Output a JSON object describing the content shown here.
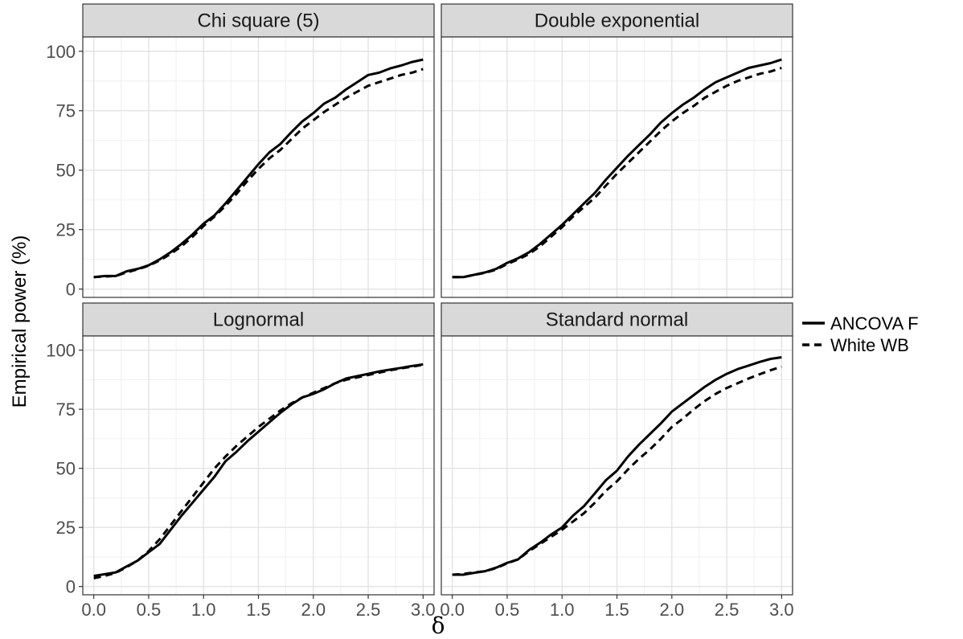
{
  "chart_data": {
    "type": "line",
    "ylabel": "Empirical power (%)",
    "xlabel": "δ",
    "xlim": [
      0.0,
      3.0
    ],
    "ylim": [
      0,
      100
    ],
    "x_ticks": [
      "0.0",
      "0.5",
      "1.0",
      "1.5",
      "2.0",
      "2.5",
      "3.0"
    ],
    "y_ticks": [
      "0",
      "25",
      "50",
      "75",
      "100"
    ],
    "grid": true,
    "legend_position": "right",
    "legend": [
      {
        "label": "ANCOVA F",
        "style": "solid"
      },
      {
        "label": "White WB",
        "style": "dashed"
      }
    ],
    "x": [
      0.0,
      0.1,
      0.2,
      0.3,
      0.4,
      0.5,
      0.6,
      0.7,
      0.8,
      0.9,
      1.0,
      1.1,
      1.2,
      1.3,
      1.4,
      1.5,
      1.6,
      1.7,
      1.8,
      1.9,
      2.0,
      2.1,
      2.2,
      2.3,
      2.4,
      2.5,
      2.6,
      2.7,
      2.8,
      2.9,
      3.0
    ],
    "panels": [
      {
        "title": "Chi square (5)",
        "series": [
          {
            "name": "ANCOVA F",
            "style": "solid",
            "values": [
              5,
              5.5,
              5.5,
              7.5,
              8.5,
              10,
              12.5,
              15.5,
              19,
              23,
              27.5,
              31,
              36,
              41.5,
              47,
              52.5,
              57.5,
              61,
              66,
              70.5,
              74,
              78,
              80.5,
              84,
              87,
              90,
              91,
              92.8,
              94,
              95.5,
              96.5
            ]
          },
          {
            "name": "White WB",
            "style": "dashed",
            "values": [
              5,
              5.3,
              5.5,
              7,
              8.3,
              9.8,
              12,
              14.8,
              18,
              22,
              26.5,
              30.5,
              35,
              40,
              45.5,
              50.5,
              55,
              58.5,
              63,
              67.5,
              71,
              74.5,
              77.5,
              80.5,
              83,
              85.5,
              87,
              88.5,
              90,
              91,
              92.5
            ]
          }
        ]
      },
      {
        "title": "Double exponential",
        "series": [
          {
            "name": "ANCOVA F",
            "style": "solid",
            "values": [
              5,
              5,
              6,
              7,
              8.5,
              11,
              13,
              15.5,
              19,
              23,
              27,
              31.5,
              36,
              40.5,
              46,
              51,
              56,
              60.5,
              65,
              70,
              74,
              77.5,
              80.5,
              84,
              87,
              89,
              91,
              93,
              94,
              95,
              96.5
            ]
          },
          {
            "name": "White WB",
            "style": "dashed",
            "values": [
              5,
              5,
              6,
              6.8,
              8.2,
              10.5,
              12.5,
              14.8,
              18,
              22,
              26,
              30.5,
              34.5,
              38.5,
              43.5,
              48.5,
              53,
              57.5,
              62,
              66.5,
              70.5,
              74,
              77,
              80.5,
              83,
              85.5,
              87.5,
              89,
              90.5,
              91.5,
              93
            ]
          }
        ]
      },
      {
        "title": "Lognormal",
        "series": [
          {
            "name": "ANCOVA F",
            "style": "solid",
            "values": [
              4.5,
              5.2,
              6,
              8.5,
              11,
              14.5,
              18,
              24,
              30,
              35.5,
              41,
              46.5,
              53,
              57,
              61.5,
              65.5,
              69.5,
              73.5,
              77,
              80,
              81.5,
              83.5,
              86,
              88,
              89,
              90,
              91,
              91.8,
              92.5,
              93.3,
              94
            ]
          },
          {
            "name": "White WB",
            "style": "dashed",
            "values": [
              3.5,
              4.5,
              5.8,
              8.2,
              11,
              15,
              20,
              26,
              32,
              38,
              44,
              50,
              55,
              59.5,
              63.5,
              67.5,
              71,
              74.5,
              77.5,
              80,
              82,
              84,
              86,
              87.5,
              88.5,
              89.5,
              90.5,
              91.5,
              92.3,
              93,
              93.8
            ]
          }
        ]
      },
      {
        "title": "Standard normal",
        "series": [
          {
            "name": "ANCOVA F",
            "style": "solid",
            "values": [
              5,
              5,
              5.8,
              6.5,
              8,
              10,
              11.5,
              15.5,
              18.5,
              22,
              25,
              30,
              34,
              39.5,
              45,
              49,
              55,
              60,
              64.5,
              69,
              74,
              77.5,
              81,
              84.5,
              87.5,
              90,
              92,
              93.5,
              95,
              96.3,
              97
            ]
          },
          {
            "name": "White WB",
            "style": "dashed",
            "values": [
              5,
              5.3,
              6,
              6.5,
              7.8,
              9.8,
              11.5,
              15,
              18,
              21,
              24,
              27.5,
              31,
              35.5,
              40.5,
              44.5,
              49.5,
              54,
              58,
              62.5,
              67.5,
              71,
              75,
              78.5,
              81.5,
              84,
              86,
              88,
              89.8,
              91.5,
              93
            ]
          }
        ]
      }
    ]
  }
}
